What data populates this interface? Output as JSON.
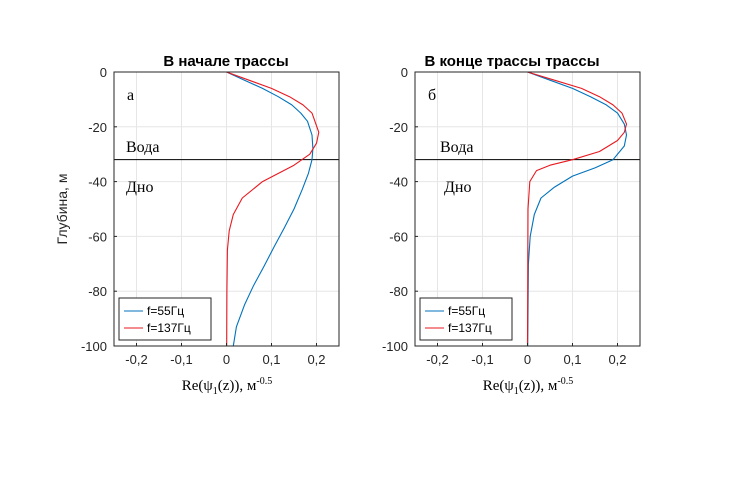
{
  "chart_data": [
    {
      "type": "line",
      "title": "В начале трассы",
      "ylabel": "Глубина, м",
      "xlabel": "Re(ψ1(z)), м-0.5",
      "xlabel_main": "Re(ψ",
      "xlabel_sub": "1",
      "xlabel_rest": "(z)), м",
      "xlabel_sup": "-0.5",
      "panel_label": "а",
      "interface_depth": -32,
      "annotations": {
        "upper": "Вода",
        "lower": "Дно"
      },
      "xlim": [
        -0.25,
        0.25
      ],
      "ylim": [
        -100,
        0
      ],
      "xticks": [
        -0.2,
        -0.1,
        0,
        0.1,
        0.2
      ],
      "xtick_labels": [
        "-0,2",
        "-0,1",
        "0",
        "0,1",
        "0,2"
      ],
      "yticks": [
        0,
        -20,
        -40,
        -60,
        -80,
        -100
      ],
      "ytick_labels": [
        "0",
        "-20",
        "-40",
        "-60",
        "-80",
        "-100"
      ],
      "grid": true,
      "legend_placement": "bottom-left",
      "series": [
        {
          "name": "f=55Гц",
          "color": "#0072BD",
          "x": [
            0,
            0.04,
            0.08,
            0.115,
            0.145,
            0.165,
            0.18,
            0.19,
            0.192,
            0.19,
            0.182,
            0.168,
            0.15,
            0.128,
            0.105,
            0.083,
            0.06,
            0.04,
            0.022,
            0.015
          ],
          "y": [
            0,
            -3,
            -6,
            -9,
            -12,
            -15,
            -18,
            -23,
            -28,
            -32,
            -37,
            -43,
            -50,
            -57,
            -64,
            -71,
            -78,
            -85,
            -93,
            -100
          ]
        },
        {
          "name": "f=137Гц",
          "color": "#E8191F",
          "x": [
            0,
            0.05,
            0.1,
            0.14,
            0.17,
            0.19,
            0.205,
            0.2,
            0.185,
            0.15,
            0.08,
            0.035,
            0.015,
            0.006,
            0.002,
            0.001,
            0.0005
          ],
          "y": [
            0,
            -3,
            -6,
            -9,
            -12,
            -15,
            -22,
            -26,
            -30,
            -34,
            -40,
            -46,
            -52,
            -58,
            -65,
            -80,
            -100
          ]
        }
      ]
    },
    {
      "type": "line",
      "title": "В конце трассы трассы",
      "ylabel": "",
      "xlabel": "Re(ψ1(z)), м-0.5",
      "xlabel_main": "Re(ψ",
      "xlabel_sub": "1",
      "xlabel_rest": "(z)), м",
      "xlabel_sup": "-0.5",
      "panel_label": "б",
      "interface_depth": -32,
      "annotations": {
        "upper": "Вода",
        "lower": "Дно"
      },
      "xlim": [
        -0.25,
        0.25
      ],
      "ylim": [
        -100,
        0
      ],
      "xticks": [
        -0.2,
        -0.1,
        0,
        0.1,
        0.2
      ],
      "xtick_labels": [
        "-0,2",
        "-0,1",
        "0",
        "0,1",
        "0,2"
      ],
      "yticks": [
        0,
        -20,
        -40,
        -60,
        -80,
        -100
      ],
      "ytick_labels": [
        "0",
        "-20",
        "-40",
        "-60",
        "-80",
        "-100"
      ],
      "grid": true,
      "legend_placement": "bottom-left",
      "series": [
        {
          "name": "f=55Гц",
          "color": "#0072BD",
          "x": [
            0,
            0.05,
            0.1,
            0.14,
            0.175,
            0.2,
            0.215,
            0.22,
            0.215,
            0.19,
            0.15,
            0.1,
            0.06,
            0.03,
            0.015,
            0.006,
            0.002,
            0.0005
          ],
          "y": [
            0,
            -3,
            -6,
            -9,
            -12,
            -15,
            -19,
            -23,
            -27,
            -32,
            -35,
            -38,
            -42,
            -46,
            -52,
            -60,
            -70,
            -100
          ]
        },
        {
          "name": "f=137Гц",
          "color": "#E8191F",
          "x": [
            0,
            0.06,
            0.12,
            0.16,
            0.19,
            0.21,
            0.22,
            0.215,
            0.2,
            0.16,
            0.1,
            0.05,
            0.02,
            0.005,
            0.001,
            0
          ],
          "y": [
            0,
            -3,
            -6,
            -9,
            -12,
            -15,
            -19,
            -22,
            -25,
            -29,
            -32,
            -34,
            -36,
            -40,
            -50,
            -100
          ]
        }
      ]
    }
  ]
}
